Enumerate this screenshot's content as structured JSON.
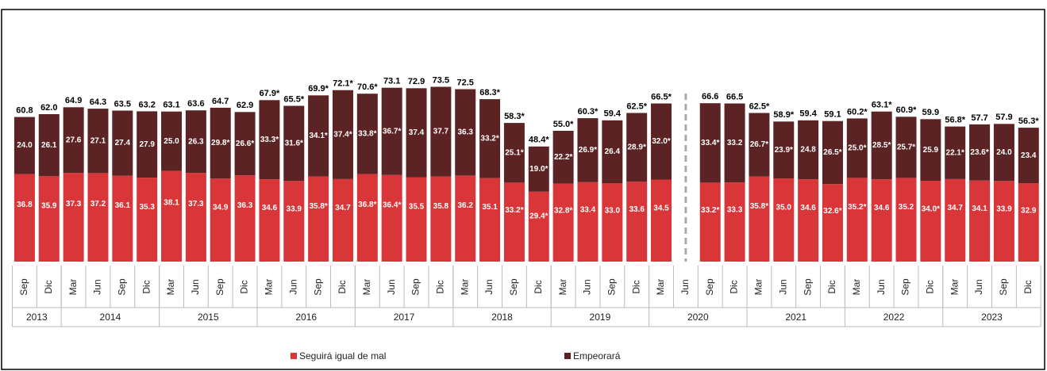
{
  "chart_data": {
    "type": "stacked_bar",
    "groups": [
      {
        "name": "2013",
        "categories": [
          "Sep",
          "Dic"
        ]
      },
      {
        "name": "2014",
        "categories": [
          "Mar",
          "Jun",
          "Sep",
          "Dic"
        ]
      },
      {
        "name": "2015",
        "categories": [
          "Mar",
          "Jun",
          "Sep",
          "Dic"
        ]
      },
      {
        "name": "2016",
        "categories": [
          "Mar",
          "Jun",
          "Sep",
          "Dic"
        ]
      },
      {
        "name": "2017",
        "categories": [
          "Mar",
          "Jun",
          "Sep",
          "Dic"
        ]
      },
      {
        "name": "2018",
        "categories": [
          "Mar",
          "Jun",
          "Sep",
          "Dic"
        ]
      },
      {
        "name": "2019",
        "categories": [
          "Mar",
          "Jun",
          "Sep",
          "Dic"
        ]
      },
      {
        "name": "2020",
        "categories": [
          "Mar",
          "Jun",
          "Sep",
          "Dic"
        ]
      },
      {
        "name": "2021",
        "categories": [
          "Mar",
          "Jun",
          "Sep",
          "Dic"
        ]
      },
      {
        "name": "2022",
        "categories": [
          "Mar",
          "Jun",
          "Sep",
          "Dic"
        ]
      },
      {
        "name": "2023",
        "categories": [
          "Mar",
          "Jun",
          "Sep",
          "Dic"
        ]
      }
    ],
    "series": [
      {
        "name": "Seguirá igual de mal",
        "color": "#d9363a",
        "values": [
          36.8,
          35.9,
          37.3,
          37.2,
          36.1,
          35.3,
          38.1,
          37.3,
          34.9,
          36.3,
          34.6,
          33.9,
          35.8,
          34.7,
          36.8,
          36.4,
          35.5,
          35.8,
          36.2,
          35.1,
          33.2,
          29.4,
          32.8,
          33.4,
          33.0,
          33.6,
          34.5,
          null,
          33.2,
          33.3,
          35.8,
          35.0,
          34.6,
          32.6,
          35.2,
          34.6,
          35.2,
          34.0,
          34.7,
          34.1,
          33.9,
          32.9
        ],
        "value_labels": [
          "36.8",
          "35.9",
          "37.3",
          "37.2",
          "36.1",
          "35.3",
          "38.1",
          "37.3",
          "34.9",
          "36.3",
          "34.6",
          "33.9",
          "35.8*",
          "34.7",
          "36.8*",
          "36.4*",
          "35.5",
          "35.8",
          "36.2",
          "35.1",
          "33.2*",
          "29.4*",
          "32.8*",
          "33.4",
          "33.0",
          "33.6",
          "34.5",
          null,
          "33.2*",
          "33.3",
          "35.8*",
          "35.0",
          "34.6",
          "32.6*",
          "35.2*",
          "34.6",
          "35.2",
          "34.0*",
          "34.7",
          "34.1",
          "33.9",
          "32.9"
        ]
      },
      {
        "name": "Empeorará",
        "color": "#5c2324",
        "values": [
          24.0,
          26.1,
          27.6,
          27.1,
          27.4,
          27.9,
          25.0,
          26.3,
          29.8,
          26.6,
          33.3,
          31.6,
          34.1,
          37.4,
          33.8,
          36.7,
          37.4,
          37.7,
          36.3,
          33.2,
          25.1,
          19.0,
          22.2,
          26.9,
          26.4,
          28.9,
          32.0,
          null,
          33.4,
          33.2,
          26.7,
          23.9,
          24.8,
          26.5,
          25.0,
          28.5,
          25.7,
          25.9,
          22.1,
          23.6,
          24.0,
          23.4
        ],
        "value_labels": [
          "24.0",
          "26.1",
          "27.6",
          "27.1",
          "27.4",
          "27.9",
          "25.0",
          "26.3",
          "29.8*",
          "26.6*",
          "33.3*",
          "31.6*",
          "34.1*",
          "37.4*",
          "33.8*",
          "36.7*",
          "37.4",
          "37.7",
          "36.3",
          "33.2*",
          "25.1*",
          "19.0*",
          "22.2*",
          "26.9*",
          "26.4",
          "28.9*",
          "32.0*",
          null,
          "33.4*",
          "33.2",
          "26.7*",
          "23.9*",
          "24.8",
          "26.5*",
          "25.0*",
          "28.5*",
          "25.7*",
          "25.9",
          "22.1*",
          "23.6*",
          "24.0",
          "23.4"
        ]
      }
    ],
    "totals": [
      60.8,
      62.0,
      64.9,
      64.3,
      63.5,
      63.2,
      63.1,
      63.6,
      64.7,
      62.9,
      67.9,
      65.5,
      69.9,
      72.1,
      70.6,
      73.1,
      72.9,
      73.5,
      72.5,
      68.3,
      58.3,
      48.4,
      55.0,
      60.3,
      59.4,
      62.5,
      66.5,
      null,
      66.6,
      66.5,
      62.5,
      58.9,
      59.4,
      59.1,
      60.2,
      63.1,
      60.9,
      59.9,
      56.8,
      57.7,
      57.9,
      56.3
    ],
    "total_labels": [
      "60.8",
      "62.0",
      "64.9",
      "64.3",
      "63.5",
      "63.2",
      "63.1",
      "63.6",
      "64.7",
      "62.9",
      "67.9*",
      "65.5*",
      "69.9*",
      "72.1*",
      "70.6*",
      "73.1",
      "72.9",
      "73.5",
      "72.5",
      "68.3*",
      "58.3*",
      "48.4*",
      "55.0*",
      "60.3*",
      "59.4",
      "62.5*",
      "66.5*",
      null,
      "66.6",
      "66.5",
      "62.5*",
      "58.9*",
      "59.4",
      "59.1",
      "60.2*",
      "63.1*",
      "60.9*",
      "59.9",
      "56.8*",
      "57.7",
      "57.9",
      "56.3*"
    ],
    "ylim": [
      0,
      80
    ]
  }
}
